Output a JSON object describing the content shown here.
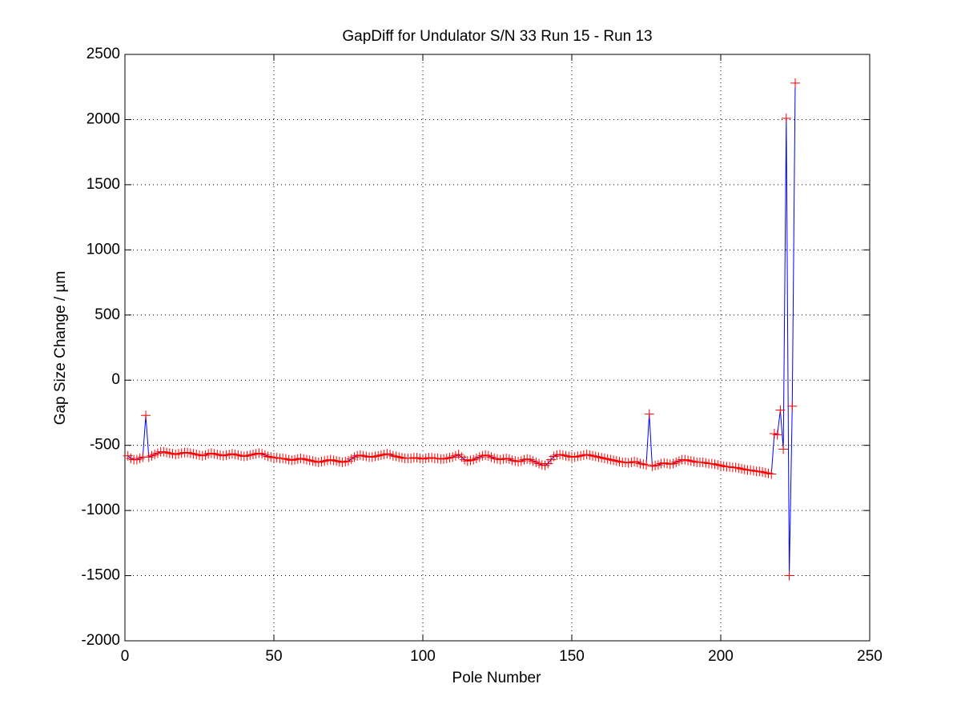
{
  "chart_data": {
    "type": "line",
    "title": "GapDiff  for Undulator S/N 33 Run 15 - Run 13",
    "xlabel": "Pole Number",
    "ylabel": "Gap Size Change / µm",
    "xlim": [
      0,
      250
    ],
    "xticks": [
      0,
      50,
      100,
      150,
      200,
      250
    ],
    "ylim": [
      -2000,
      2500
    ],
    "yticks": [
      -2000,
      -1500,
      -1000,
      -500,
      0,
      500,
      1000,
      1500,
      2000,
      2500
    ],
    "grid": true,
    "x": [
      1,
      2,
      3,
      4,
      5,
      6,
      7,
      8,
      9,
      10,
      11,
      12,
      13,
      14,
      15,
      16,
      17,
      18,
      19,
      20,
      21,
      22,
      23,
      24,
      25,
      26,
      27,
      28,
      29,
      30,
      31,
      32,
      33,
      34,
      35,
      36,
      37,
      38,
      39,
      40,
      41,
      42,
      43,
      44,
      45,
      46,
      47,
      48,
      49,
      50,
      51,
      52,
      53,
      54,
      55,
      56,
      57,
      58,
      59,
      60,
      61,
      62,
      63,
      64,
      65,
      66,
      67,
      68,
      69,
      70,
      71,
      72,
      73,
      74,
      75,
      76,
      77,
      78,
      79,
      80,
      81,
      82,
      83,
      84,
      85,
      86,
      87,
      88,
      89,
      90,
      91,
      92,
      93,
      94,
      95,
      96,
      97,
      98,
      99,
      100,
      101,
      102,
      103,
      104,
      105,
      106,
      107,
      108,
      109,
      110,
      111,
      112,
      113,
      114,
      115,
      116,
      117,
      118,
      119,
      120,
      121,
      122,
      123,
      124,
      125,
      126,
      127,
      128,
      129,
      130,
      131,
      132,
      133,
      134,
      135,
      136,
      137,
      138,
      139,
      140,
      141,
      142,
      143,
      144,
      145,
      146,
      147,
      148,
      149,
      150,
      151,
      152,
      153,
      154,
      155,
      156,
      157,
      158,
      159,
      160,
      161,
      162,
      163,
      164,
      165,
      166,
      167,
      168,
      169,
      170,
      171,
      172,
      173,
      174,
      175,
      176,
      177,
      178,
      179,
      180,
      181,
      182,
      183,
      184,
      185,
      186,
      187,
      188,
      189,
      190,
      191,
      192,
      193,
      194,
      195,
      196,
      197,
      198,
      199,
      200,
      201,
      202,
      203,
      204,
      205,
      206,
      207,
      208,
      209,
      210,
      211,
      212,
      213,
      214,
      215,
      216,
      217,
      218,
      219,
      220,
      221,
      222,
      223,
      224,
      225
    ],
    "series": [
      {
        "name": "GapDiff",
        "color": "#0000ff",
        "marker_color": "#ff0000",
        "values": [
          -580,
          -600,
          -610,
          -610,
          -600,
          -590,
          -270,
          -590,
          -580,
          -570,
          -560,
          -550,
          -550,
          -555,
          -560,
          -565,
          -570,
          -565,
          -560,
          -555,
          -555,
          -560,
          -565,
          -570,
          -575,
          -580,
          -575,
          -565,
          -560,
          -565,
          -570,
          -575,
          -580,
          -575,
          -570,
          -565,
          -570,
          -575,
          -580,
          -585,
          -580,
          -575,
          -570,
          -565,
          -560,
          -565,
          -575,
          -585,
          -590,
          -595,
          -595,
          -600,
          -600,
          -605,
          -610,
          -615,
          -610,
          -605,
          -600,
          -605,
          -610,
          -615,
          -620,
          -625,
          -630,
          -625,
          -620,
          -615,
          -610,
          -615,
          -620,
          -625,
          -630,
          -625,
          -620,
          -605,
          -590,
          -580,
          -575,
          -580,
          -585,
          -590,
          -590,
          -585,
          -580,
          -575,
          -570,
          -565,
          -570,
          -580,
          -585,
          -590,
          -595,
          -600,
          -600,
          -600,
          -595,
          -595,
          -600,
          -605,
          -600,
          -595,
          -595,
          -600,
          -600,
          -605,
          -605,
          -600,
          -595,
          -590,
          -580,
          -570,
          -590,
          -610,
          -620,
          -615,
          -610,
          -600,
          -590,
          -580,
          -575,
          -580,
          -590,
          -600,
          -605,
          -610,
          -605,
          -600,
          -605,
          -615,
          -620,
          -625,
          -620,
          -610,
          -605,
          -610,
          -620,
          -630,
          -640,
          -650,
          -655,
          -640,
          -610,
          -585,
          -575,
          -570,
          -575,
          -580,
          -585,
          -590,
          -590,
          -585,
          -580,
          -575,
          -570,
          -575,
          -580,
          -585,
          -590,
          -595,
          -600,
          -605,
          -610,
          -615,
          -620,
          -625,
          -630,
          -630,
          -635,
          -630,
          -625,
          -630,
          -640,
          -645,
          -650,
          -260,
          -660,
          -655,
          -650,
          -640,
          -635,
          -640,
          -645,
          -640,
          -630,
          -620,
          -610,
          -610,
          -615,
          -620,
          -625,
          -630,
          -630,
          -630,
          -635,
          -640,
          -640,
          -645,
          -650,
          -655,
          -660,
          -665,
          -665,
          -670,
          -670,
          -675,
          -680,
          -685,
          -690,
          -690,
          -695,
          -700,
          -700,
          -705,
          -710,
          -715,
          -720,
          -410,
          -420,
          -230,
          -530,
          2010,
          -1500,
          -200,
          2280
        ]
      }
    ]
  }
}
